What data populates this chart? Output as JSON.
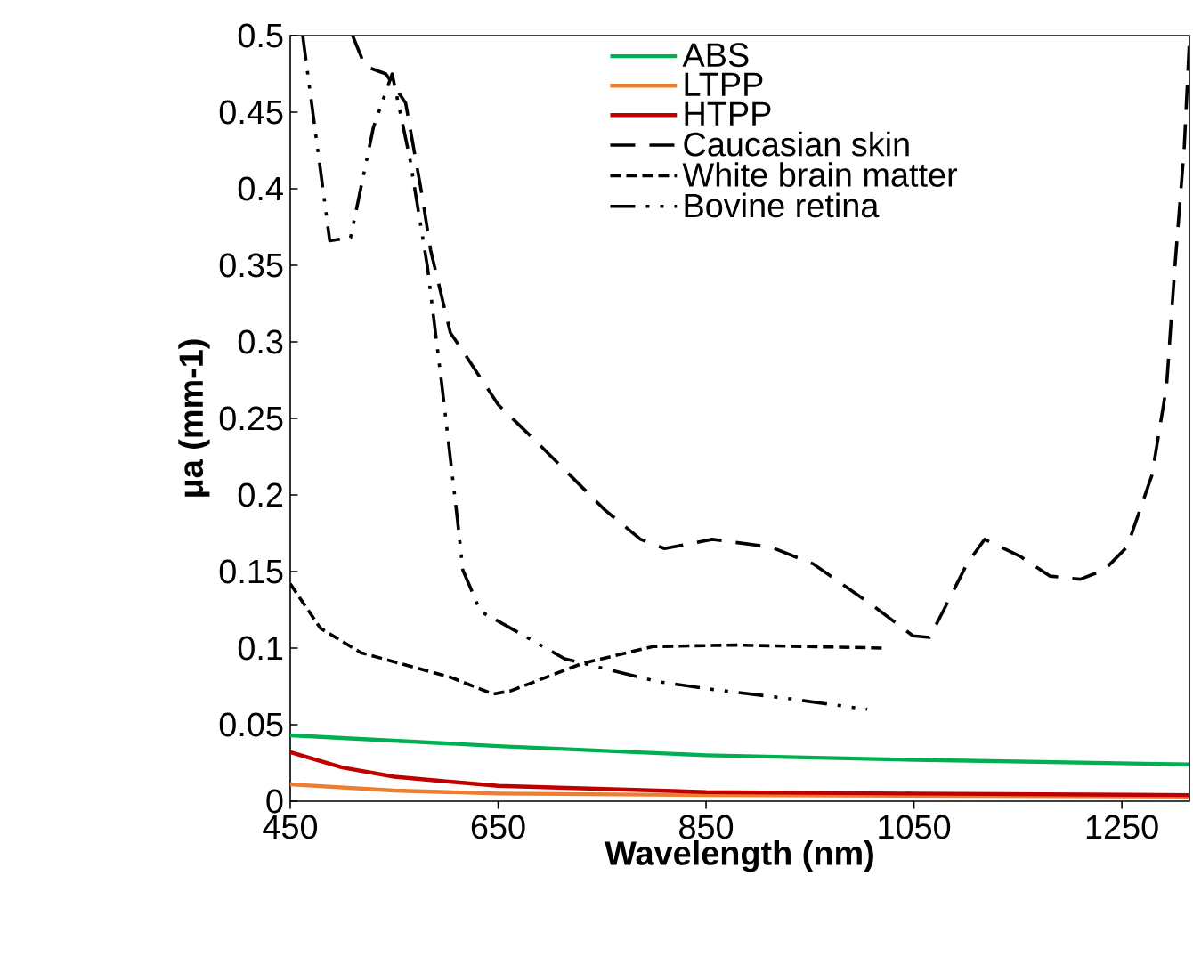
{
  "chart_data": {
    "type": "line",
    "xlabel": "Wavelength (nm)",
    "ylabel": "μa (mm-1)",
    "xlim": [
      450,
      1315
    ],
    "ylim": [
      0,
      0.5
    ],
    "xticks": [
      450,
      650,
      850,
      1050,
      1250
    ],
    "yticks": [
      0,
      0.05,
      0.1,
      0.15,
      0.2,
      0.25,
      0.3,
      0.35,
      0.4,
      0.45,
      0.5
    ],
    "legend": "top",
    "line_style": "solid",
    "series": [
      {
        "name": "ABS",
        "color": "#00b050",
        "x": [
          450,
          650,
          850,
          1050,
          1315
        ],
        "values": [
          0.043,
          0.036,
          0.03,
          0.027,
          0.024
        ]
      },
      {
        "name": "LTPP",
        "color": "#ed7d31",
        "x": [
          450,
          550,
          650,
          850,
          1315
        ],
        "values": [
          0.011,
          0.007,
          0.005,
          0.004,
          0.003
        ]
      },
      {
        "name": "HTPP",
        "color": "#c00000",
        "x": [
          450,
          500,
          550,
          650,
          850,
          1050,
          1315
        ],
        "values": [
          0.032,
          0.022,
          0.016,
          0.01,
          0.006,
          0.005,
          0.004
        ]
      },
      {
        "name": "Caucasian skin",
        "color": "#000000",
        "line_style": "dashed",
        "x": [
          510,
          522,
          542,
          561,
          577,
          585,
          604,
          616,
          650,
          685,
          719,
          753,
          787,
          810,
          856,
          912,
          953,
          1010,
          1049,
          1065,
          1078,
          1101,
          1118,
          1152,
          1181,
          1210,
          1233,
          1255,
          1279,
          1293,
          1301,
          1310,
          1315
        ],
        "values": [
          0.5,
          0.48,
          0.475,
          0.456,
          0.395,
          0.36,
          0.306,
          0.294,
          0.259,
          0.236,
          0.213,
          0.19,
          0.171,
          0.165,
          0.171,
          0.166,
          0.155,
          0.128,
          0.108,
          0.107,
          0.124,
          0.155,
          0.171,
          0.16,
          0.147,
          0.145,
          0.151,
          0.166,
          0.213,
          0.271,
          0.349,
          0.427,
          0.497
        ]
      },
      {
        "name": "White brain matter",
        "color": "#000000",
        "line_style": "dotted",
        "x": [
          450,
          479,
          518,
          604,
          645,
          662,
          731,
          799,
          878,
          1022
        ],
        "values": [
          0.142,
          0.113,
          0.097,
          0.081,
          0.07,
          0.072,
          0.09,
          0.101,
          0.102,
          0.1
        ]
      },
      {
        "name": "Bovine retina",
        "color": "#000000",
        "line_style": "dashdotdot",
        "x": [
          462,
          488,
          508,
          530,
          548,
          565,
          582,
          596,
          611,
          616,
          633,
          662,
          714,
          804,
          856,
          929,
          1005
        ],
        "values": [
          0.5,
          0.366,
          0.368,
          0.44,
          0.475,
          0.42,
          0.349,
          0.271,
          0.183,
          0.151,
          0.124,
          0.113,
          0.093,
          0.078,
          0.073,
          0.067,
          0.06
        ]
      }
    ]
  }
}
